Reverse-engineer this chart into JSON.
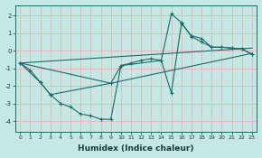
{
  "xlabel": "Humidex (Indice chaleur)",
  "bg_color": "#c5e8e4",
  "line_color": "#1a6b6b",
  "grid_color": "#e8b4b4",
  "xlim": [
    -0.5,
    23.5
  ],
  "ylim": [
    -4.6,
    2.6
  ],
  "yticks": [
    -4,
    -3,
    -2,
    -1,
    0,
    1,
    2
  ],
  "xticks": [
    0,
    1,
    2,
    3,
    4,
    5,
    6,
    7,
    8,
    9,
    10,
    11,
    12,
    13,
    14,
    15,
    16,
    17,
    18,
    19,
    20,
    21,
    22,
    23
  ],
  "series1_x": [
    0,
    1,
    2,
    3,
    4,
    5,
    6,
    7,
    8,
    9,
    10,
    11,
    12,
    13,
    14,
    15,
    16,
    17,
    18,
    19,
    20,
    21,
    22,
    23
  ],
  "series1_y": [
    -0.7,
    -1.1,
    -1.8,
    -2.5,
    -3.0,
    -3.2,
    -3.6,
    -3.7,
    -3.9,
    -3.9,
    -0.85,
    -0.7,
    -0.55,
    -0.45,
    -0.55,
    -2.4,
    1.55,
    0.85,
    0.7,
    0.2,
    0.2,
    0.15,
    0.1,
    -0.2
  ],
  "series2_x": [
    0,
    2,
    3,
    9,
    10,
    14,
    15,
    16,
    17,
    18,
    19,
    20,
    21,
    22,
    23
  ],
  "series2_y": [
    -0.7,
    -1.8,
    -2.5,
    -1.85,
    -0.85,
    -0.55,
    2.1,
    1.6,
    0.8,
    0.5,
    0.2,
    0.2,
    0.15,
    0.1,
    -0.2
  ],
  "series3_x": [
    0,
    9,
    23
  ],
  "series3_y": [
    -0.7,
    -1.85,
    -0.15
  ],
  "series4_x": [
    0,
    23
  ],
  "series4_y": [
    -0.7,
    0.15
  ]
}
